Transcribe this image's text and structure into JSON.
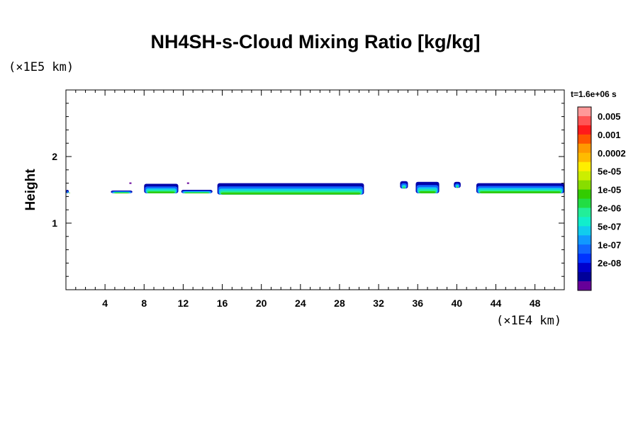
{
  "chart_data": {
    "type": "heatmap",
    "title": "NH4SH-s-Cloud Mixing Ratio [kg/kg]",
    "ylabel": "Height",
    "x_multiplier": "(×1E4 km)",
    "y_multiplier": "(×1E5 km)",
    "time_label": "t=1.6e+06 s",
    "xlim": [
      0,
      51
    ],
    "ylim": [
      0,
      3
    ],
    "x_ticks": [
      4,
      8,
      12,
      16,
      20,
      24,
      28,
      32,
      36,
      40,
      44,
      48
    ],
    "y_ticks": [
      1,
      2
    ],
    "colorbar": {
      "levels": [
        "0.005",
        "0.001",
        "0.0002",
        "5e-05",
        "1e-05",
        "2e-06",
        "5e-07",
        "1e-07",
        "2e-08"
      ],
      "colors": [
        "#ff9999",
        "#ff5555",
        "#ff1a1a",
        "#ff5500",
        "#ff9900",
        "#ffbb00",
        "#ffee00",
        "#ccee00",
        "#88dd00",
        "#33cc00",
        "#22dd44",
        "#22ee99",
        "#11eecc",
        "#11ccee",
        "#1199ff",
        "#1166ff",
        "#0033ff",
        "#0000cc",
        "#000099",
        "#660099"
      ]
    },
    "cloud_segments": [
      {
        "x_start": 0,
        "x_end": 0.3,
        "y_base": 1.45,
        "y_top": 1.5
      },
      {
        "x_start": 4.6,
        "x_end": 6.8,
        "y_base": 1.45,
        "y_top": 1.49
      },
      {
        "x_start": 8.0,
        "x_end": 11.5,
        "y_base": 1.45,
        "y_top": 1.59
      },
      {
        "x_start": 11.8,
        "x_end": 15.0,
        "y_base": 1.45,
        "y_top": 1.5
      },
      {
        "x_start": 15.5,
        "x_end": 30.5,
        "y_base": 1.43,
        "y_top": 1.6
      },
      {
        "x_start": 34.2,
        "x_end": 35.0,
        "y_base": 1.52,
        "y_top": 1.63
      },
      {
        "x_start": 35.8,
        "x_end": 38.2,
        "y_base": 1.45,
        "y_top": 1.62
      },
      {
        "x_start": 39.7,
        "x_end": 40.4,
        "y_base": 1.53,
        "y_top": 1.62
      },
      {
        "x_start": 42.0,
        "x_end": 51.0,
        "y_base": 1.45,
        "y_top": 1.6
      }
    ],
    "small_specks": [
      {
        "x": 6.6,
        "y": 1.6
      },
      {
        "x": 12.5,
        "y": 1.6
      }
    ],
    "grid": false
  }
}
